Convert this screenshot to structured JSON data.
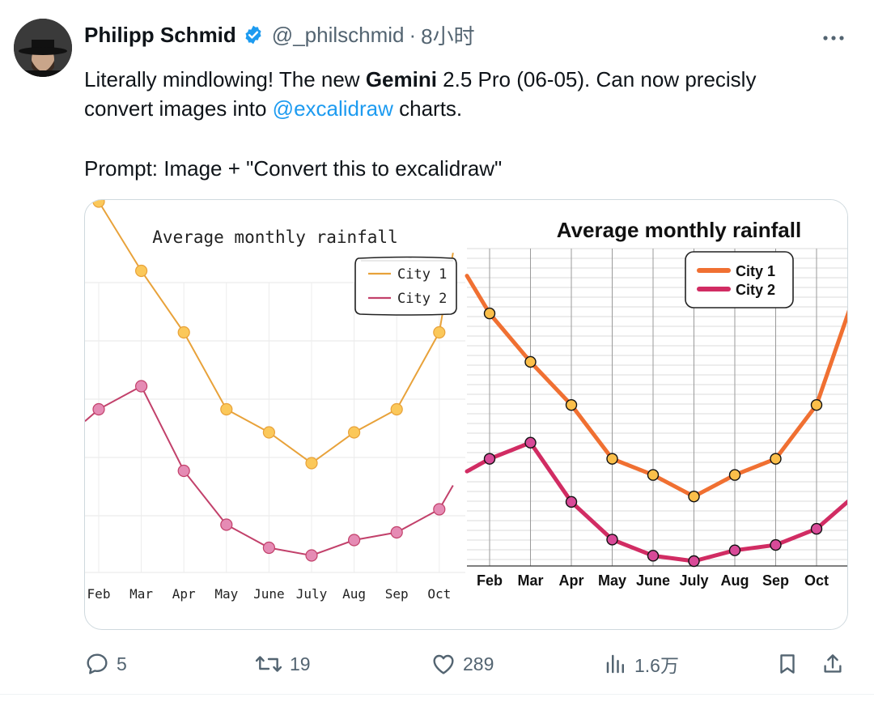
{
  "tweet": {
    "author_name": "Philipp Schmid",
    "handle": "@_philschmid",
    "separator": "·",
    "time": "8小时",
    "text": {
      "line1_pre": "Literally mindlowing! The new ",
      "line1_bold": "Gemini",
      "line1_post": " 2.5 Pro (06-05). Can now precisly",
      "line2_pre": "convert images into ",
      "line2_mention": "@excalidraw",
      "line2_post": " charts.",
      "line3": "Prompt: Image + \"Convert this to excalidraw\""
    }
  },
  "actions": {
    "replies": "5",
    "reposts": "19",
    "likes": "289",
    "views": "1.6万"
  },
  "colors": {
    "accent": "#1d9bf0",
    "text": "#0f1419",
    "muted": "#536471",
    "city1_left": "#e8a23a",
    "city1_left_marker": "#fbc85a",
    "city2_left": "#c2416b",
    "city2_left_marker": "#e58bb4",
    "city1_right": "#f07032",
    "city1_right_marker": "#fbbf4a",
    "city2_right": "#d12c63",
    "city2_right_marker": "#d84a98"
  },
  "chart_data": [
    {
      "type": "line",
      "title": "Average monthly rainfall",
      "categories": [
        "Feb",
        "Mar",
        "Apr",
        "May",
        "June",
        "July",
        "Aug",
        "Sep",
        "Oct"
      ],
      "series": [
        {
          "name": "City 1",
          "values": [
            6.6,
            5.7,
            4.9,
            3.9,
            3.6,
            3.2,
            3.6,
            3.9,
            4.9
          ]
        },
        {
          "name": "City 2",
          "values": [
            3.9,
            4.2,
            3.1,
            2.4,
            2.1,
            2.0,
            2.2,
            2.3,
            2.6
          ]
        }
      ],
      "legend": "top-right",
      "grid": true
    },
    {
      "type": "line",
      "title": "Average monthly rainfall",
      "categories": [
        "Feb",
        "Mar",
        "Apr",
        "May",
        "June",
        "July",
        "Aug",
        "Sep",
        "Oct"
      ],
      "series": [
        {
          "name": "City 1",
          "values": [
            6.6,
            5.7,
            4.9,
            3.9,
            3.6,
            3.2,
            3.6,
            3.9,
            4.9
          ]
        },
        {
          "name": "City 2",
          "values": [
            3.9,
            4.2,
            3.1,
            2.4,
            2.1,
            2.0,
            2.2,
            2.3,
            2.6
          ]
        }
      ],
      "legend": "top-right",
      "grid": true
    }
  ]
}
